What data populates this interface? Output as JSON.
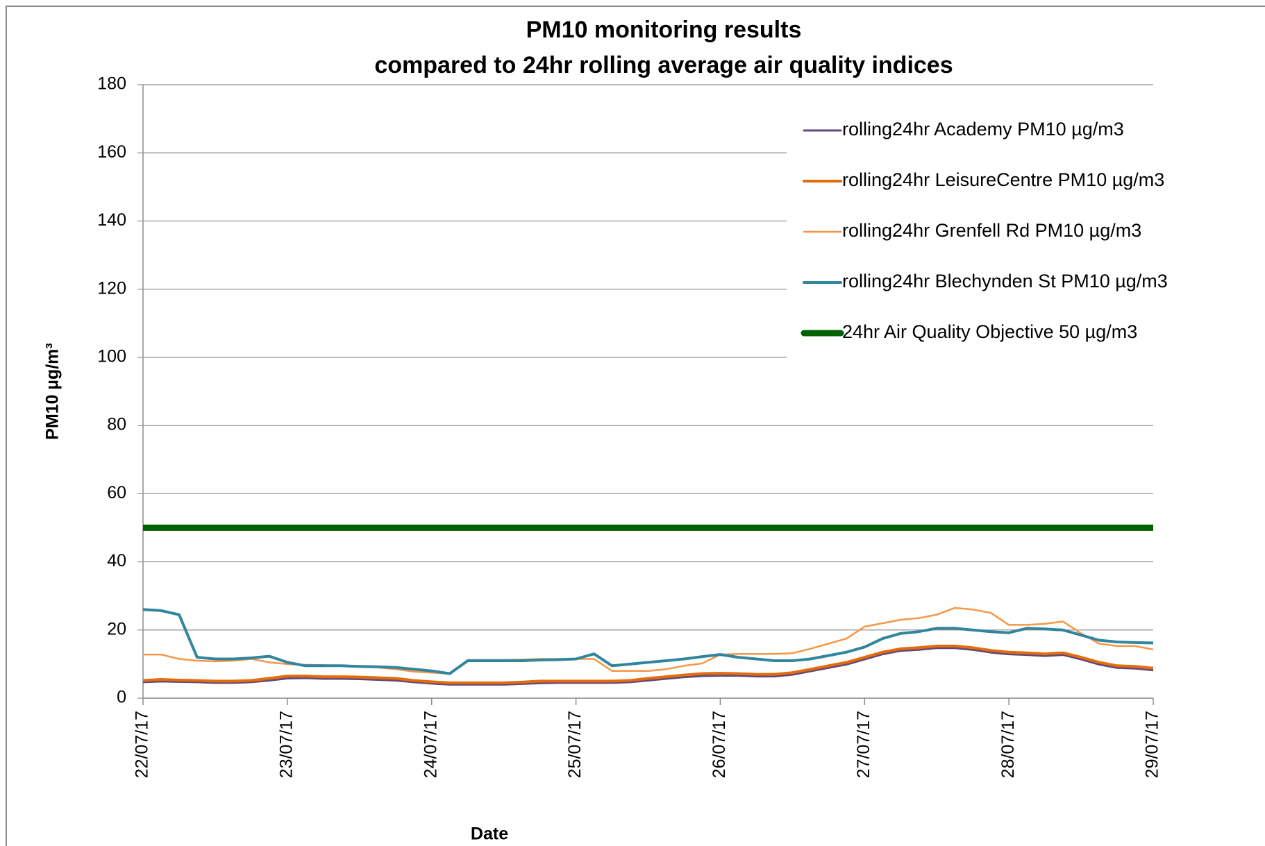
{
  "chart_data": {
    "type": "line",
    "title": [
      "PM10 monitoring results",
      "compared to 24hr rolling average air quality indices"
    ],
    "xlabel": "Date",
    "ylabel": "PM10 µg/m³",
    "x": [
      0,
      0.125,
      0.25,
      0.375,
      0.5,
      0.625,
      0.75,
      0.875,
      1,
      1.125,
      1.25,
      1.375,
      1.5,
      1.625,
      1.75,
      1.875,
      2,
      2.125,
      2.25,
      2.375,
      2.5,
      2.625,
      2.75,
      2.875,
      3,
      3.125,
      3.25,
      3.375,
      3.5,
      3.625,
      3.75,
      3.875,
      4,
      4.125,
      4.25,
      4.375,
      4.5,
      4.625,
      4.75,
      4.875,
      5,
      5.125,
      5.25,
      5.375,
      5.5,
      5.625,
      5.75,
      5.875,
      6,
      6.125,
      6.25,
      6.375,
      6.5,
      6.625,
      6.75,
      6.875,
      7
    ],
    "xlim": [
      0,
      7
    ],
    "xticks": [
      {
        "value": 0,
        "label": "22/07/17"
      },
      {
        "value": 1,
        "label": "23/07/17"
      },
      {
        "value": 2,
        "label": "24/07/17"
      },
      {
        "value": 3,
        "label": "25/07/17"
      },
      {
        "value": 4,
        "label": "26/07/17"
      },
      {
        "value": 5,
        "label": "27/07/17"
      },
      {
        "value": 6,
        "label": "28/07/17"
      },
      {
        "value": 7,
        "label": "29/07/17"
      }
    ],
    "ylim": [
      0,
      180
    ],
    "yticks": [
      0,
      20,
      40,
      60,
      80,
      100,
      120,
      140,
      160,
      180
    ],
    "grid": true,
    "legend": "upper right",
    "series": [
      {
        "name": "rolling24hr Academy PM10 µg/m3",
        "color": "#604a7b",
        "width": 3,
        "values": [
          4.7,
          4.9,
          4.8,
          4.7,
          4.5,
          4.5,
          4.7,
          5.2,
          5.8,
          5.9,
          5.7,
          5.7,
          5.6,
          5.4,
          5.2,
          4.7,
          4.3,
          4,
          4,
          4,
          4,
          4.2,
          4.4,
          4.5,
          4.5,
          4.5,
          4.5,
          4.7,
          5.2,
          5.7,
          6.2,
          6.5,
          6.6,
          6.6,
          6.4,
          6.4,
          6.9,
          7.9,
          8.9,
          9.9,
          11.4,
          12.9,
          13.9,
          14.2,
          14.7,
          14.7,
          14.2,
          13.4,
          12.9,
          12.7,
          12.4,
          12.7,
          11.4,
          9.9,
          8.9,
          8.7,
          8.2
        ]
      },
      {
        "name": "rolling24hr LeisureCentre PM10 µg/m3",
        "color": "#e46c0a",
        "width": 4,
        "values": [
          5.2,
          5.5,
          5.3,
          5.2,
          5,
          5,
          5.2,
          5.8,
          6.5,
          6.5,
          6.3,
          6.3,
          6.2,
          6,
          5.8,
          5.2,
          4.8,
          4.5,
          4.5,
          4.5,
          4.5,
          4.7,
          5,
          5,
          5,
          5,
          5,
          5.2,
          5.8,
          6.3,
          6.8,
          7.2,
          7.3,
          7.2,
          7,
          7,
          7.5,
          8.5,
          9.5,
          10.5,
          12,
          13.5,
          14.5,
          14.8,
          15.3,
          15.3,
          14.8,
          14,
          13.5,
          13.3,
          13,
          13.3,
          12,
          10.5,
          9.5,
          9.3,
          8.8
        ]
      },
      {
        "name": "rolling24hr Grenfell Rd PM10 µg/m3",
        "color": "#f79646",
        "width": 2.5,
        "values": [
          12.8,
          12.8,
          11.5,
          11,
          10.8,
          11,
          11.5,
          10.5,
          10,
          9.8,
          9.7,
          9.5,
          9.2,
          9,
          8.5,
          7.8,
          7.5,
          7.2,
          11.2,
          11.2,
          11.2,
          11.3,
          11.5,
          11.5,
          11.5,
          11.5,
          8,
          8,
          8,
          8.5,
          9.5,
          10.2,
          12.8,
          13,
          13,
          13,
          13.2,
          14.5,
          16,
          17.5,
          21,
          22,
          23,
          23.5,
          24.5,
          26.5,
          26,
          25,
          21.5,
          21.5,
          21.8,
          22.5,
          19,
          16,
          15.3,
          15.3,
          14.3
        ]
      },
      {
        "name": "rolling24hr Blechynden St PM10 µg/m3",
        "color": "#31859c",
        "width": 4,
        "values": [
          26,
          25.7,
          24.5,
          12,
          11.5,
          11.5,
          11.8,
          12.3,
          10.5,
          9.5,
          9.5,
          9.5,
          9.3,
          9.2,
          9,
          8.5,
          8,
          7.2,
          11,
          11,
          11,
          11,
          11.2,
          11.3,
          11.5,
          13,
          9.5,
          10,
          10.5,
          11,
          11.5,
          12.2,
          12.8,
          12,
          11.5,
          11,
          11,
          11.5,
          12.5,
          13.5,
          15,
          17.5,
          19,
          19.5,
          20.5,
          20.5,
          20,
          19.5,
          19.2,
          20.5,
          20.3,
          20,
          18.5,
          17,
          16.5,
          16.3,
          16.2
        ]
      },
      {
        "name": "24hr Air Quality Objective 50 µg/m3",
        "color": "#006100",
        "width": 9,
        "values": [
          50,
          50,
          50,
          50,
          50,
          50,
          50,
          50,
          50,
          50,
          50,
          50,
          50,
          50,
          50,
          50,
          50,
          50,
          50,
          50,
          50,
          50,
          50,
          50,
          50,
          50,
          50,
          50,
          50,
          50,
          50,
          50,
          50,
          50,
          50,
          50,
          50,
          50,
          50,
          50,
          50,
          50,
          50,
          50,
          50,
          50,
          50,
          50,
          50,
          50,
          50,
          50,
          50,
          50,
          50,
          50,
          50
        ]
      }
    ]
  }
}
